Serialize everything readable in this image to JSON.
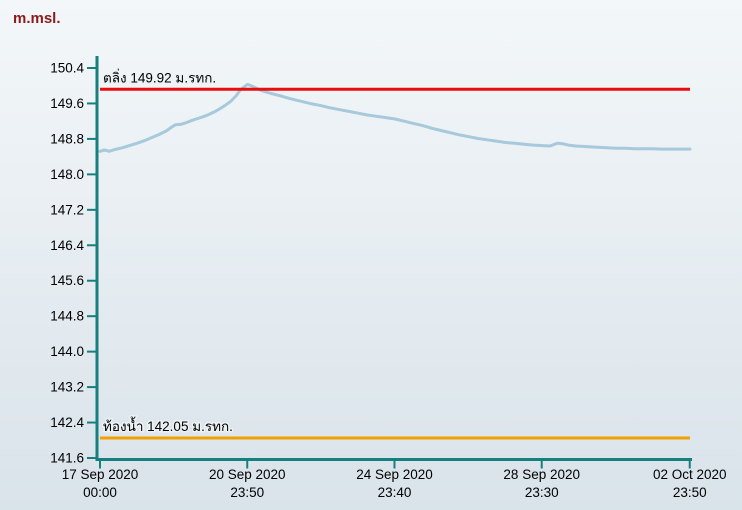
{
  "chart": {
    "title": "m.msl.",
    "title_color": "#8b1a1a"
  },
  "chart_data": {
    "type": "line",
    "title": "m.msl.",
    "xlabel": "",
    "ylabel": "m.msl.",
    "ylim": [
      141.6,
      150.4
    ],
    "y_tick_step": 0.8,
    "y_ticks": [
      141.6,
      142.4,
      143.2,
      144.0,
      144.8,
      145.6,
      146.4,
      147.2,
      148.0,
      148.8,
      149.6,
      150.4
    ],
    "x_range_days": [
      0,
      16
    ],
    "x_ticks": [
      {
        "date": "17 Sep 2020",
        "time": "00:00",
        "day": 0
      },
      {
        "date": "20 Sep 2020",
        "time": "23:50",
        "day": 3.993
      },
      {
        "date": "24 Sep 2020",
        "time": "23:40",
        "day": 7.986
      },
      {
        "date": "28 Sep 2020",
        "time": "23:30",
        "day": 11.979
      },
      {
        "date": "02 Oct 2020",
        "time": "23:50",
        "day": 15.993
      }
    ],
    "grid": false,
    "legend": "none",
    "axis_color": "#15807d",
    "tick_label_color": "#000000",
    "series": [
      {
        "name": "water-level",
        "color": "#a6c9db",
        "points": [
          [
            0.0,
            148.52
          ],
          [
            0.12,
            148.55
          ],
          [
            0.25,
            148.52
          ],
          [
            0.4,
            148.56
          ],
          [
            0.6,
            148.6
          ],
          [
            0.8,
            148.65
          ],
          [
            1.0,
            148.7
          ],
          [
            1.2,
            148.76
          ],
          [
            1.4,
            148.83
          ],
          [
            1.6,
            148.9
          ],
          [
            1.8,
            148.98
          ],
          [
            1.95,
            149.07
          ],
          [
            2.05,
            149.12
          ],
          [
            2.2,
            149.13
          ],
          [
            2.35,
            149.17
          ],
          [
            2.5,
            149.22
          ],
          [
            2.65,
            149.26
          ],
          [
            2.8,
            149.3
          ],
          [
            2.95,
            149.35
          ],
          [
            3.1,
            149.41
          ],
          [
            3.25,
            149.48
          ],
          [
            3.4,
            149.56
          ],
          [
            3.55,
            149.65
          ],
          [
            3.7,
            149.78
          ],
          [
            3.8,
            149.9
          ],
          [
            3.9,
            149.97
          ],
          [
            4.0,
            150.03
          ],
          [
            4.1,
            150.0
          ],
          [
            4.2,
            149.96
          ],
          [
            4.35,
            149.9
          ],
          [
            4.5,
            149.86
          ],
          [
            4.7,
            149.81
          ],
          [
            4.9,
            149.77
          ],
          [
            5.1,
            149.72
          ],
          [
            5.3,
            149.68
          ],
          [
            5.5,
            149.64
          ],
          [
            5.75,
            149.59
          ],
          [
            6.0,
            149.55
          ],
          [
            6.25,
            149.5
          ],
          [
            6.5,
            149.46
          ],
          [
            6.75,
            149.42
          ],
          [
            7.0,
            149.38
          ],
          [
            7.25,
            149.34
          ],
          [
            7.5,
            149.31
          ],
          [
            7.75,
            149.28
          ],
          [
            8.0,
            149.25
          ],
          [
            8.25,
            149.2
          ],
          [
            8.5,
            149.15
          ],
          [
            8.75,
            149.1
          ],
          [
            9.0,
            149.04
          ],
          [
            9.25,
            148.99
          ],
          [
            9.5,
            148.94
          ],
          [
            9.75,
            148.89
          ],
          [
            10.0,
            148.85
          ],
          [
            10.25,
            148.81
          ],
          [
            10.5,
            148.78
          ],
          [
            10.75,
            148.75
          ],
          [
            11.0,
            148.72
          ],
          [
            11.25,
            148.7
          ],
          [
            11.5,
            148.68
          ],
          [
            11.75,
            148.66
          ],
          [
            12.0,
            148.65
          ],
          [
            12.2,
            148.64
          ],
          [
            12.4,
            148.7
          ],
          [
            12.55,
            148.69
          ],
          [
            12.7,
            148.66
          ],
          [
            12.9,
            148.64
          ],
          [
            13.1,
            148.63
          ],
          [
            13.3,
            148.62
          ],
          [
            13.5,
            148.61
          ],
          [
            13.75,
            148.6
          ],
          [
            14.0,
            148.59
          ],
          [
            14.25,
            148.59
          ],
          [
            14.5,
            148.58
          ],
          [
            14.75,
            148.58
          ],
          [
            15.0,
            148.58
          ],
          [
            15.25,
            148.57
          ],
          [
            15.5,
            148.57
          ],
          [
            15.75,
            148.57
          ],
          [
            16.0,
            148.57
          ]
        ]
      }
    ],
    "thresholds": [
      {
        "name": "bank-level",
        "label": "ตลิ่ง 149.92 ม.รทก.",
        "value": 149.92,
        "color": "#e90e0e"
      },
      {
        "name": "river-bed",
        "label": "ท้องน้ำ 142.05 ม.รทก.",
        "value": 142.05,
        "color": "#f2a000"
      }
    ]
  }
}
